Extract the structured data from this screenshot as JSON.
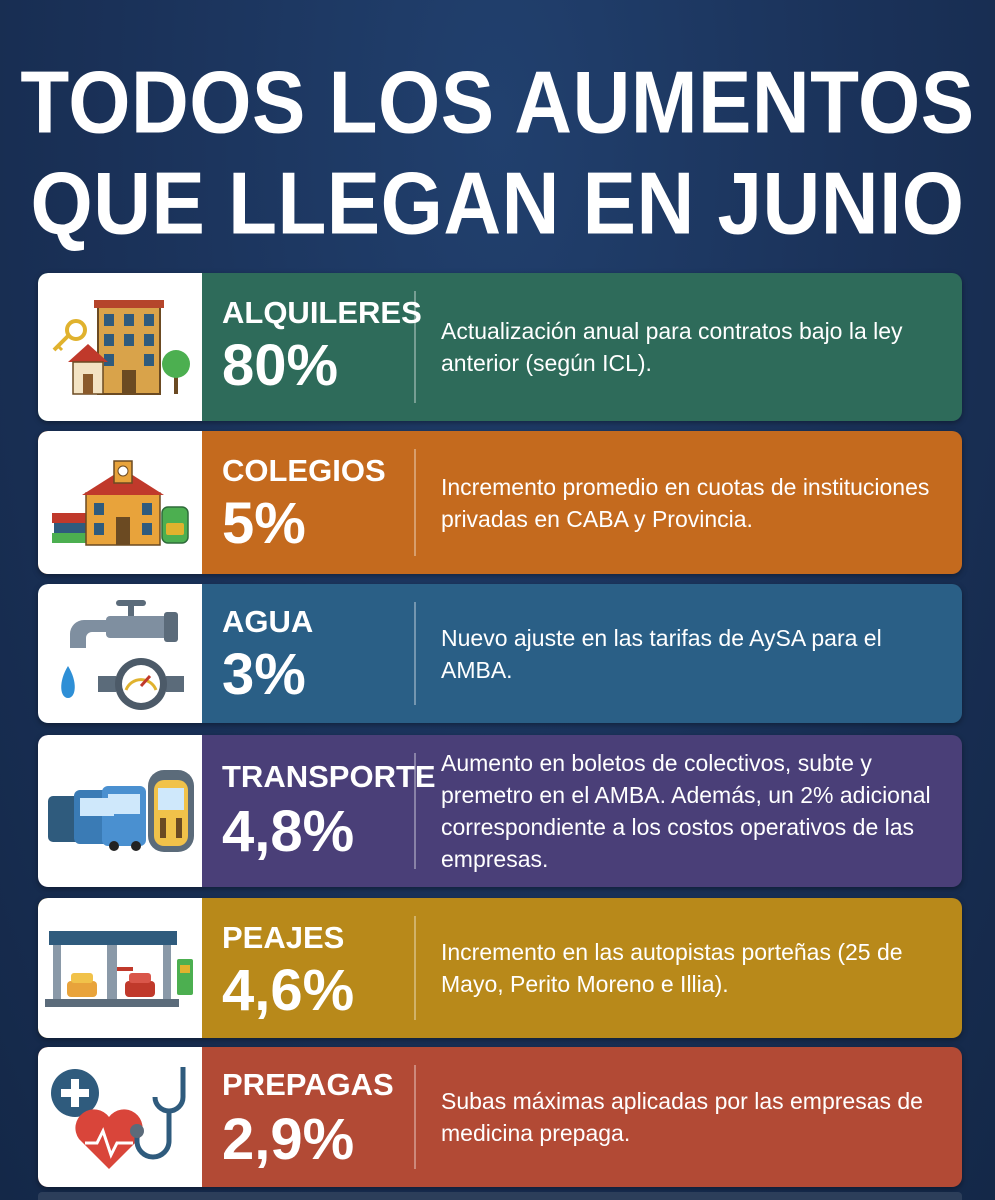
{
  "title": {
    "line1": "TODOS LOS AUMENTOS",
    "line2": "QUE LLEGAN EN JUNIO"
  },
  "cards": [
    {
      "category": "ALQUILERES",
      "percent": "80%",
      "description": "Actualización anual para contratos bajo la ley anterior (según ICL).",
      "color": "#2e6b5a",
      "icon": "building-icon"
    },
    {
      "category": "COLEGIOS",
      "percent": "5%",
      "description": "Incremento promedio en cuotas de instituciones privadas en CABA y Provincia.",
      "color": "#c46a1e",
      "icon": "school-icon"
    },
    {
      "category": "AGUA",
      "percent": "3%",
      "description": "Nuevo ajuste en las tarifas de AySA para el AMBA.",
      "color": "#2a5f86",
      "icon": "faucet-icon"
    },
    {
      "category": "TRANSPORTE",
      "percent": "4,8%",
      "description": "Aumento en boletos de colectivos, subte y premetro en el AMBA. Además, un 2% adicional correspondiente a los costos operativos de las empresas.",
      "color": "#4a3f78",
      "icon": "bus-icon"
    },
    {
      "category": "PEAJES",
      "percent": "4,6%",
      "description": "Incremento en las autopistas porteñas (25 de Mayo, Perito Moreno e Illia).",
      "color": "#b8891a",
      "icon": "toll-booth-icon"
    },
    {
      "category": "PREPAGAS",
      "percent": "2,9%",
      "description": "Subas máximas aplicadas por las empresas de medicina prepaga.",
      "color": "#b24a35",
      "icon": "stethoscope-icon"
    }
  ]
}
